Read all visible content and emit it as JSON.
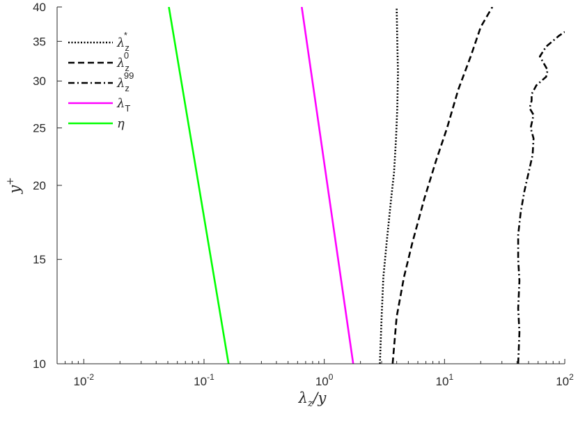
{
  "chart_data": {
    "type": "line",
    "title": "",
    "xlabel": "λz/y",
    "ylabel": "y+",
    "xscale": "log",
    "yscale": "log",
    "xlim": [
      0.006,
      100
    ],
    "ylim": [
      10,
      40
    ],
    "xticks": [
      {
        "value": 0.01,
        "label": "10-2"
      },
      {
        "value": 0.1,
        "label": "10-1"
      },
      {
        "value": 1,
        "label": "100"
      },
      {
        "value": 10,
        "label": "101"
      },
      {
        "value": 100,
        "label": "102"
      }
    ],
    "yticks": [
      {
        "value": 10,
        "label": "10"
      },
      {
        "value": 15,
        "label": "15"
      },
      {
        "value": 20,
        "label": "20"
      },
      {
        "value": 25,
        "label": "25"
      },
      {
        "value": 30,
        "label": "30"
      },
      {
        "value": 35,
        "label": "35"
      },
      {
        "value": 40,
        "label": "40"
      }
    ],
    "grid": false,
    "legend_position": "top-left",
    "series": [
      {
        "name": "λz*",
        "base": "λ",
        "sub": "z",
        "sup": "*",
        "color": "#000000",
        "style": "dotted",
        "x": [
          2.9,
          3.0,
          3.1,
          3.3,
          3.6,
          3.8,
          3.95,
          4.05,
          4.1,
          4.05,
          4.0
        ],
        "y": [
          10,
          12,
          14,
          16,
          19,
          21,
          24,
          27,
          31,
          35,
          40
        ]
      },
      {
        "name": "λz0",
        "base": "λ",
        "sub": "z",
        "sup": "0",
        "color": "#000000",
        "style": "dashed",
        "x": [
          3.7,
          4.0,
          4.6,
          5.4,
          6.8,
          8.5,
          10.5,
          13.0,
          16.5,
          20.0,
          25.0
        ],
        "y": [
          10,
          12,
          14,
          16,
          19,
          22,
          25,
          29,
          33,
          37,
          40
        ]
      },
      {
        "name": "λz99",
        "base": "λ",
        "sub": "z",
        "sup": "99",
        "color": "#000000",
        "style": "dashdot",
        "x": [
          41,
          42,
          41,
          42,
          41,
          41,
          43,
          46,
          50,
          54,
          55,
          52,
          55,
          51,
          53,
          53,
          58,
          70,
          72,
          62,
          70,
          90,
          100
        ],
        "y": [
          10,
          11.3,
          12.4,
          13.8,
          15,
          16.5,
          18,
          19.5,
          21,
          22.5,
          24,
          25,
          26.3,
          27,
          27.8,
          28.5,
          29.5,
          30.5,
          31.3,
          33,
          34.3,
          35.8,
          36.3
        ]
      },
      {
        "name": "λT",
        "base": "λ",
        "sub": "T",
        "sup": "",
        "color": "#ff00ff",
        "style": "solid",
        "x": [
          1.74,
          0.65
        ],
        "y": [
          10,
          40
        ]
      },
      {
        "name": "η",
        "base": "η",
        "sub": "",
        "sup": "",
        "color": "#00ff00",
        "style": "solid",
        "x": [
          0.16,
          0.051
        ],
        "y": [
          10,
          40
        ]
      }
    ]
  }
}
